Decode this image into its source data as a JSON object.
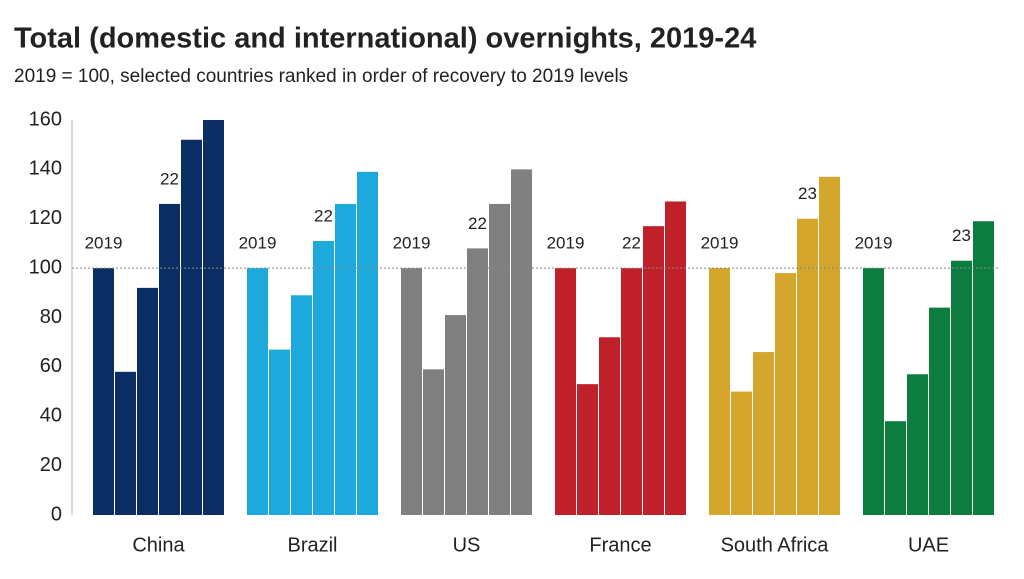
{
  "chart_data": {
    "type": "bar",
    "title": "Total (domestic and international) overnights, 2019-24",
    "subtitle": "2019 = 100, selected countries ranked in order of recovery to 2019 levels",
    "ylim": [
      0,
      160
    ],
    "yticks": [
      0,
      20,
      40,
      60,
      80,
      100,
      120,
      140,
      160
    ],
    "reference_line": 100,
    "groups": [
      {
        "name": "China",
        "color": "#0b2f64",
        "values": [
          100,
          58,
          92,
          126,
          152,
          160
        ],
        "bar_labels": [
          "2019",
          null,
          null,
          "22",
          null,
          null
        ]
      },
      {
        "name": "Brazil",
        "color": "#1ea9dc",
        "values": [
          100,
          67,
          89,
          111,
          126,
          139
        ],
        "bar_labels": [
          "2019",
          null,
          null,
          "22",
          null,
          null
        ]
      },
      {
        "name": "US",
        "color": "#808080",
        "values": [
          100,
          59,
          81,
          108,
          126,
          140
        ],
        "bar_labels": [
          "2019",
          null,
          null,
          "22",
          null,
          null
        ]
      },
      {
        "name": "France",
        "color": "#c0202a",
        "values": [
          100,
          53,
          72,
          100,
          117,
          127
        ],
        "bar_labels": [
          "2019",
          null,
          null,
          "22",
          null,
          null
        ]
      },
      {
        "name": "South Africa",
        "color": "#d4a72c",
        "values": [
          100,
          50,
          66,
          98,
          120,
          137
        ],
        "bar_labels": [
          "2019",
          null,
          null,
          null,
          "23",
          null
        ]
      },
      {
        "name": "UAE",
        "color": "#0d7d3f",
        "values": [
          100,
          38,
          57,
          84,
          103,
          119
        ],
        "bar_labels": [
          "2019",
          null,
          null,
          null,
          "23",
          null
        ]
      }
    ]
  }
}
